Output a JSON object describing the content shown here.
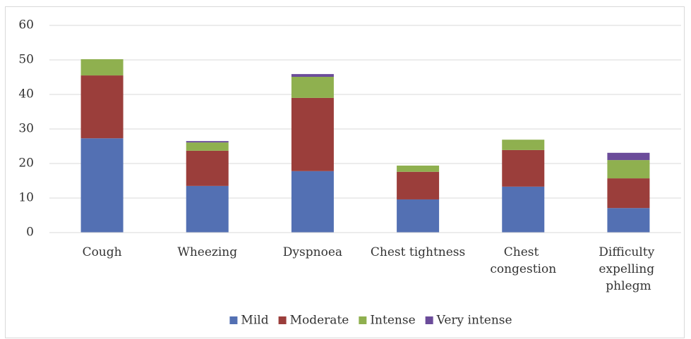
{
  "chart_data": {
    "type": "stacked_bar",
    "categories": [
      "Cough",
      "Wheezing",
      "Dyspnoea",
      "Chest tightness",
      "Chest congestion",
      "Difficulty expelling phlegm"
    ],
    "series": [
      {
        "name": "Mild",
        "color": "#5370b3",
        "values": [
          27.3,
          13.5,
          17.8,
          9.6,
          13.3,
          7.1
        ]
      },
      {
        "name": "Moderate",
        "color": "#9b3e3b",
        "values": [
          18.2,
          10.2,
          21.2,
          8.0,
          10.6,
          8.6
        ]
      },
      {
        "name": "Intense",
        "color": "#8fb04f",
        "values": [
          4.7,
          2.4,
          6.1,
          1.8,
          3.0,
          5.3
        ]
      },
      {
        "name": "Very intense",
        "color": "#6b4c9a",
        "values": [
          0,
          0.4,
          0.8,
          0,
          0,
          2.1
        ]
      }
    ],
    "ylim": [
      0,
      60
    ],
    "yticks": [
      0,
      10,
      20,
      30,
      40,
      50,
      60
    ],
    "grid": true,
    "legend": "bottom"
  }
}
